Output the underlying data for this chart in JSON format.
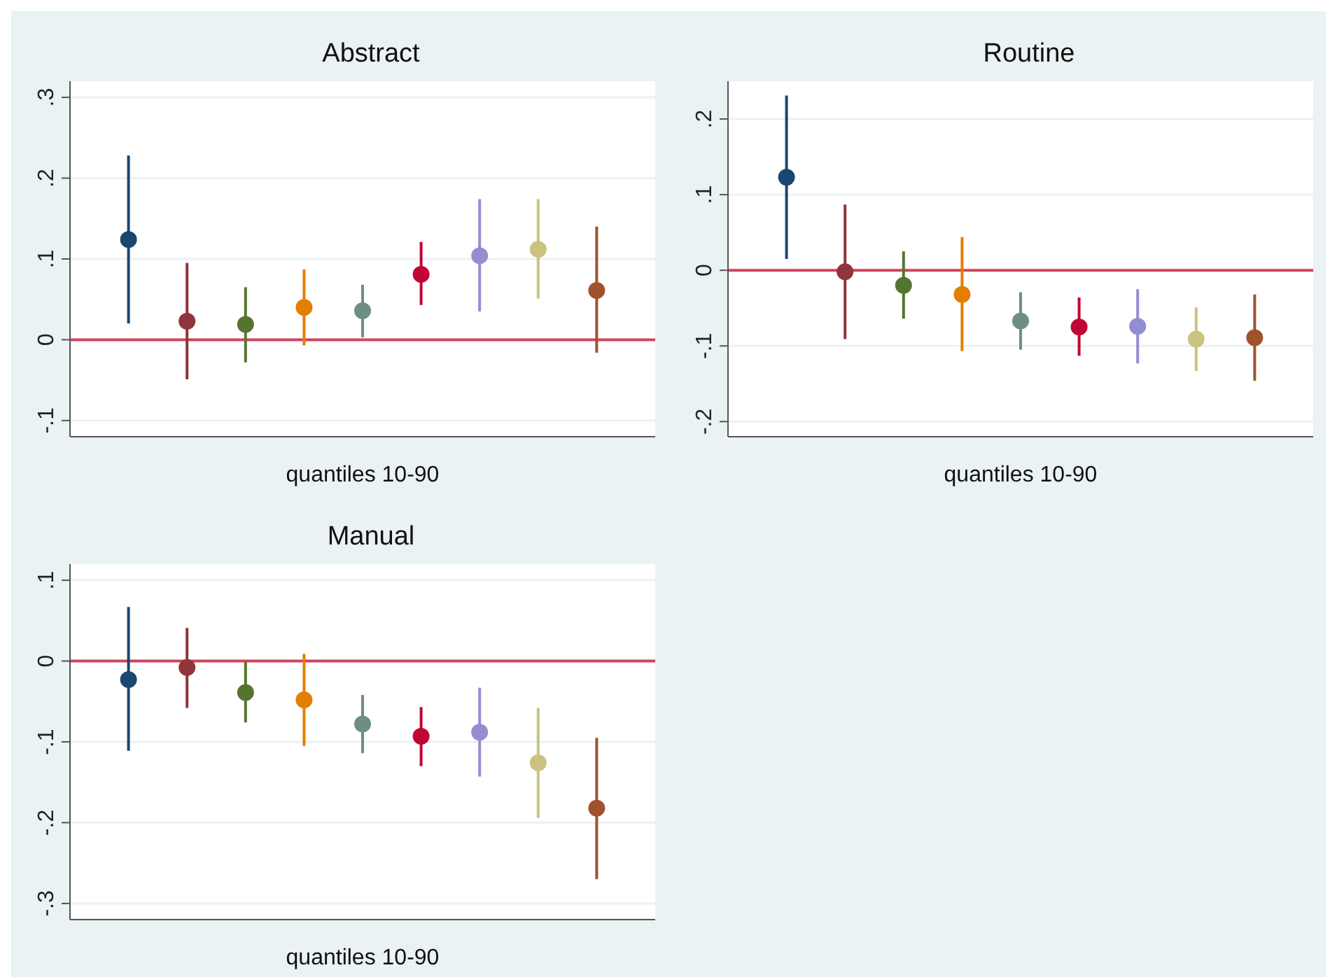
{
  "chart_data": [
    {
      "type": "scatter",
      "title": "Abstract",
      "xlabel": "quantiles 10-90",
      "categories": [
        null,
        null,
        null,
        null,
        null,
        null,
        null,
        null,
        null
      ],
      "values": [
        0.124,
        0.023,
        0.019,
        0.04,
        0.036,
        0.081,
        0.104,
        0.112,
        0.061
      ],
      "errors": [
        [
          0.02,
          0.228
        ],
        [
          -0.049,
          0.095
        ],
        [
          -0.028,
          0.065
        ],
        [
          -0.007,
          0.087
        ],
        [
          0.003,
          0.068
        ],
        [
          0.043,
          0.121
        ],
        [
          0.035,
          0.174
        ],
        [
          0.051,
          0.174
        ],
        [
          -0.016,
          0.14
        ]
      ],
      "colors": [
        "#1a476f",
        "#90353b",
        "#55752f",
        "#e37e00",
        "#6e8e84",
        "#c10534",
        "#938dd2",
        "#cac27e",
        "#a0522d"
      ],
      "ylim": [
        -0.12,
        0.32
      ],
      "yticks": [
        {
          "value": -0.1,
          "label": "-.1"
        },
        {
          "value": 0,
          "label": "0"
        },
        {
          "value": 0.1,
          "label": ".1"
        },
        {
          "value": 0.2,
          "label": ".2"
        },
        {
          "value": 0.3,
          "label": ".3"
        }
      ],
      "grid": "y",
      "marker": "circle",
      "legend": false,
      "ref_lines": [
        {
          "axis": "y",
          "value": 0,
          "color": "#d0435c"
        }
      ]
    },
    {
      "type": "scatter",
      "title": "Routine",
      "xlabel": "quantiles 10-90",
      "categories": [
        null,
        null,
        null,
        null,
        null,
        null,
        null,
        null,
        null
      ],
      "values": [
        0.123,
        -0.002,
        -0.02,
        -0.032,
        -0.067,
        -0.075,
        -0.074,
        -0.091,
        -0.089
      ],
      "errors": [
        [
          0.015,
          0.231
        ],
        [
          -0.091,
          0.087
        ],
        [
          -0.064,
          0.025
        ],
        [
          -0.107,
          0.044
        ],
        [
          -0.105,
          -0.029
        ],
        [
          -0.113,
          -0.036
        ],
        [
          -0.123,
          -0.025
        ],
        [
          -0.133,
          -0.049
        ],
        [
          -0.146,
          -0.032
        ]
      ],
      "colors": [
        "#1a476f",
        "#90353b",
        "#55752f",
        "#e37e00",
        "#6e8e84",
        "#c10534",
        "#938dd2",
        "#cac27e",
        "#a0522d"
      ],
      "ylim": [
        -0.22,
        0.25
      ],
      "yticks": [
        {
          "value": -0.2,
          "label": "-.2"
        },
        {
          "value": -0.1,
          "label": "-.1"
        },
        {
          "value": 0,
          "label": "0"
        },
        {
          "value": 0.1,
          "label": ".1"
        },
        {
          "value": 0.2,
          "label": ".2"
        }
      ],
      "grid": "y",
      "marker": "circle",
      "legend": false,
      "ref_lines": [
        {
          "axis": "y",
          "value": 0,
          "color": "#d0435c"
        }
      ]
    },
    {
      "type": "scatter",
      "title": "Manual",
      "xlabel": "quantiles 10-90",
      "categories": [
        null,
        null,
        null,
        null,
        null,
        null,
        null,
        null,
        null
      ],
      "values": [
        -0.023,
        -0.008,
        -0.039,
        -0.048,
        -0.078,
        -0.093,
        -0.088,
        -0.126,
        -0.182
      ],
      "errors": [
        [
          -0.111,
          0.067
        ],
        [
          -0.058,
          0.041
        ],
        [
          -0.076,
          -0.001
        ],
        [
          -0.105,
          0.009
        ],
        [
          -0.114,
          -0.042
        ],
        [
          -0.13,
          -0.057
        ],
        [
          -0.143,
          -0.033
        ],
        [
          -0.194,
          -0.058
        ],
        [
          -0.27,
          -0.095
        ]
      ],
      "colors": [
        "#1a476f",
        "#90353b",
        "#55752f",
        "#e37e00",
        "#6e8e84",
        "#c10534",
        "#938dd2",
        "#cac27e",
        "#a0522d"
      ],
      "ylim": [
        -0.32,
        0.12
      ],
      "yticks": [
        {
          "value": -0.3,
          "label": "-.3"
        },
        {
          "value": -0.2,
          "label": "-.2"
        },
        {
          "value": -0.1,
          "label": "-.1"
        },
        {
          "value": 0,
          "label": "0"
        },
        {
          "value": 0.1,
          "label": ".1"
        }
      ],
      "grid": "y",
      "marker": "circle",
      "legend": false,
      "ref_lines": [
        {
          "axis": "y",
          "value": 0,
          "color": "#d0435c"
        }
      ]
    }
  ]
}
